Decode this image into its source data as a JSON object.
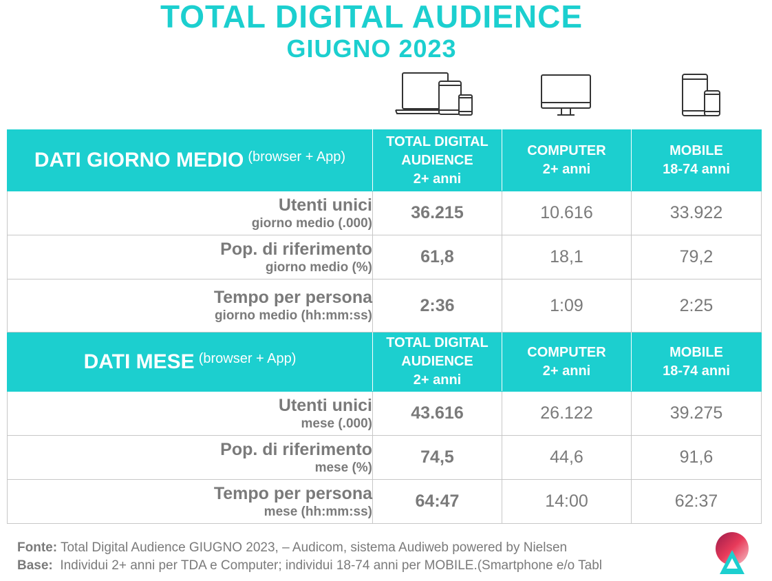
{
  "title": "TOTAL DIGITAL AUDIENCE",
  "subtitle": "GIUGNO 2023",
  "icons": {
    "devices": "all-devices-icon",
    "computer": "computer-monitor-icon",
    "mobile": "tablet-smartphone-icon"
  },
  "colors": {
    "accent": "#1ccfcf",
    "text_grey": "#7a7a7a",
    "border": "#c7c7c7"
  },
  "columns": {
    "tda": [
      "TOTAL DIGITAL",
      "AUDIENCE",
      "2+ anni"
    ],
    "computer": [
      "COMPUTER",
      "2+ anni"
    ],
    "mobile": [
      "MOBILE",
      "18-74 anni"
    ]
  },
  "sections": [
    {
      "title": "DATI GIORNO MEDIO",
      "subtitle": "(browser + App)",
      "rows": [
        {
          "label": "Utenti unici",
          "sublabel": "giorno medio (.000)",
          "tda": "36.215",
          "computer": "10.616",
          "mobile": "33.922"
        },
        {
          "label": "Pop. di riferimento",
          "sublabel": "giorno medio (%)",
          "tda": "61,8",
          "computer": "18,1",
          "mobile": "79,2"
        },
        {
          "label": "Tempo per persona",
          "sublabel": "giorno medio (hh:mm:ss)",
          "tda": "2:36",
          "computer": "1:09",
          "mobile": "2:25"
        }
      ]
    },
    {
      "title": "DATI MESE",
      "subtitle": "(browser + App)",
      "rows": [
        {
          "label": "Utenti unici",
          "sublabel": "mese (.000)",
          "tda": "43.616",
          "computer": "26.122",
          "mobile": "39.275"
        },
        {
          "label": "Pop. di riferimento",
          "sublabel": "mese (%)",
          "tda": "74,5",
          "computer": "44,6",
          "mobile": "91,6"
        },
        {
          "label": "Tempo per persona",
          "sublabel": "mese (hh:mm:ss)",
          "tda": "64:47",
          "computer": "14:00",
          "mobile": "62:37"
        }
      ]
    }
  ],
  "footer": {
    "fonte_label": "Fonte:",
    "fonte_text": "Total Digital Audience GIUGNO 2023, – Audicom, sistema Audiweb powered by Nielsen",
    "base_label": "Base:",
    "base_text": "Individui 2+ anni per TDA e Computer; individui 18-74 anni per MOBILE.(Smartphone e/o Tabl"
  },
  "logo": "audiweb-logo"
}
